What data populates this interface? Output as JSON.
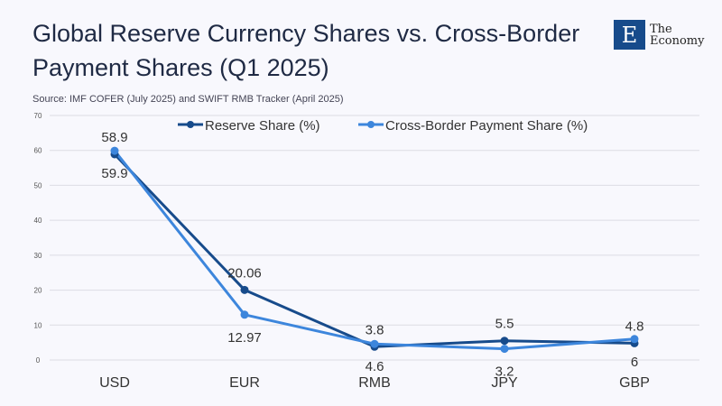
{
  "header": {
    "title": "Global Reserve Currency Shares vs. Cross-Border Payment Shares (Q1 2025)",
    "source": "Source: IMF COFER (July 2025) and SWIFT RMB Tracker (April 2025)",
    "logo": {
      "letter": "E",
      "line1": "The",
      "line2": "Economy"
    }
  },
  "chart_data": {
    "type": "line",
    "title": "Global Reserve Currency Shares vs. Cross-Border Payment Shares (Q1 2025)",
    "categories": [
      "USD",
      "EUR",
      "RMB",
      "JPY",
      "GBP"
    ],
    "ylim": [
      0,
      70
    ],
    "yticks": [
      0,
      10,
      20,
      30,
      40,
      50,
      60,
      70
    ],
    "grid": true,
    "legend_position": "top",
    "series": [
      {
        "name": "Reserve Share (%)",
        "values": [
          58.9,
          20.06,
          3.8,
          5.5,
          4.8
        ],
        "color": "#174b8b",
        "label_pos": "above"
      },
      {
        "name": "Cross-Border Payment Share (%)",
        "values": [
          59.9,
          12.97,
          4.6,
          3.2,
          6
        ],
        "color": "#3d86dc",
        "label_pos": "below"
      }
    ]
  }
}
